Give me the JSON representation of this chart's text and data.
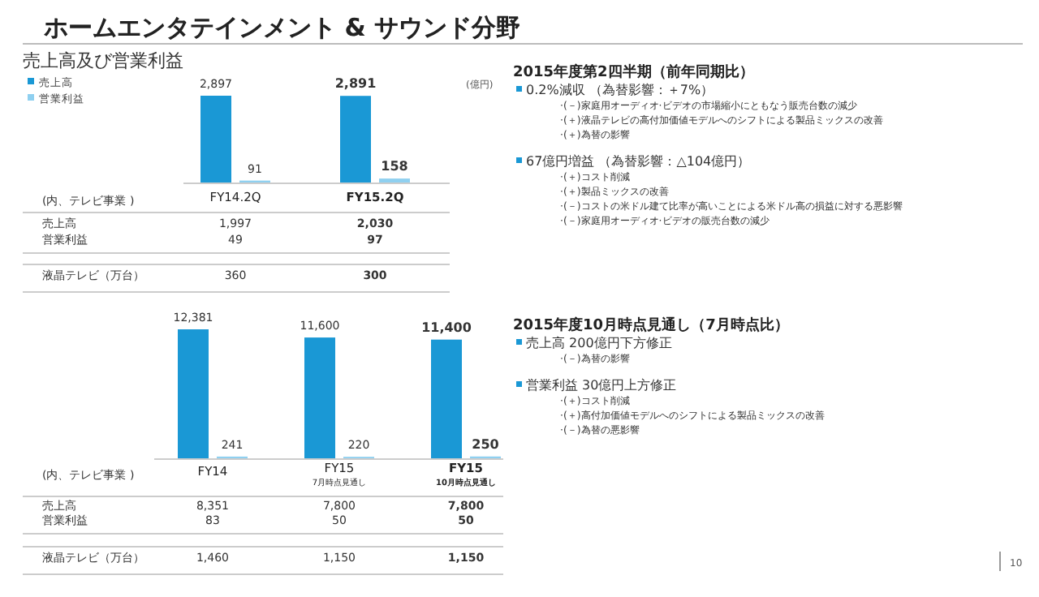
{
  "chart_data": [
    {
      "type": "bar",
      "title": "ホームエンタテインメント & サウンド分野",
      "subtitle": "売上高及び営業利益",
      "ylabel": "(億円)",
      "categories": [
        "FY14.2Q",
        "FY15.2Q"
      ],
      "series": [
        {
          "name": "売上高",
          "color": "#1a98d5",
          "values": [
            2897,
            2891
          ],
          "value_labels": [
            "2,897",
            "2,891"
          ]
        },
        {
          "name": "営業利益",
          "color": "#8fd0f0",
          "values": [
            91,
            158
          ],
          "value_labels": [
            "91",
            "158"
          ]
        }
      ],
      "legend": "top left",
      "annotations": [
        "(内、テレビ事業 )",
        "売上高",
        "1,997",
        "2,030",
        "営業利益",
        "49",
        "97",
        "液晶テレビ（万台）",
        "360",
        "300"
      ]
    },
    {
      "type": "bar",
      "categories": [
        "FY14",
        "FY15\n7月時点見通し",
        "FY15\n10月時点見通し"
      ],
      "series": [
        {
          "color": "#1a98d5",
          "values": [
            12381,
            11600,
            11400
          ],
          "value_labels": [
            "12,381",
            "11,600",
            "11,400"
          ]
        },
        {
          "color": "#8fd0f0",
          "values": [
            241,
            220,
            250
          ],
          "value_labels": [
            "241",
            "220",
            "250"
          ]
        }
      ],
      "annotations": [
        "(内、テレビ事業 )",
        "売上高",
        "8,351",
        "7,800",
        "7,800",
        "営業利益",
        "83",
        "50",
        "50",
        "液晶テレビ（万台）",
        "1,460",
        "1,150",
        "1,150"
      ]
    },
    {
      "type": "other",
      "title": "2015年度第2四半期（前年同期比）",
      "annotations": [
        "0.2%減収 （為替影響：＋7%）",
        "·(－)家庭用オーディオ·ビデオの市場縮小にともなう販売台数の減少",
        "·(＋)液晶テレビの高付加価値モデルへのシフトによる製品ミックスの改善",
        "·(＋)為替の影響",
        "67億円増益 （為替影響：△104億円）",
        "·(＋)コスト削減",
        "·(＋)製品ミックスの改善",
        "·(－)コストの米ドル建て比率が高いことによる米ドル高の損益に対する悪影響",
        "·(－)家庭用オーディオ·ビデオの販売台数の減少"
      ]
    },
    {
      "type": "other",
      "title": "2015年度10月時点見通し（7月時点比）",
      "annotations": [
        "売上高 200億円下方修正",
        "·(－)為替の影響",
        "営業利益 30億円上方修正",
        "·(＋)コスト削減",
        "·(＋)高付加価値モデルへのシフトによる製品ミックスの改善",
        "·(－)為替の悪影響",
        "10"
      ]
    }
  ]
}
